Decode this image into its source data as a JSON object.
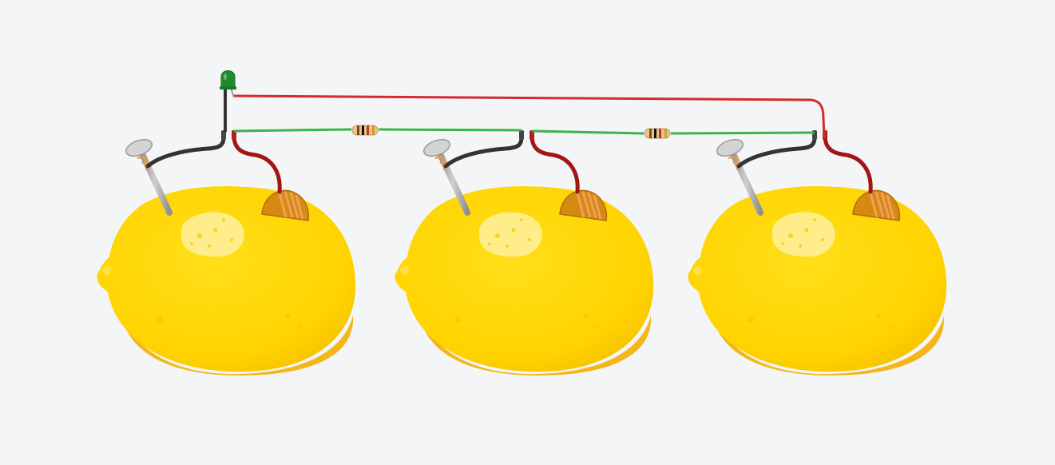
{
  "canvas": {
    "background": "#f3f5f7"
  },
  "colors": {
    "lemon": "#ffd300",
    "lemon_shadow": "#f2b50f",
    "lemon_highlight": "#fff3a8",
    "nail": "#a8a8a8",
    "nail_head": "#c9c9c9",
    "copper": "#e0961f",
    "copper_dark": "#b96f10",
    "wire_black": "#333333",
    "wire_dark_red": "#a31515",
    "wire_red": "#d42b2b",
    "wire_green": "#3db34a",
    "led_green": "#1e8c2a",
    "resistor_body": "#e6c68f"
  },
  "components": {
    "lemons": [
      {
        "id": "lemon-1",
        "electrodes": [
          "zinc-nail",
          "copper-coin"
        ]
      },
      {
        "id": "lemon-2",
        "electrodes": [
          "zinc-nail",
          "copper-coin"
        ]
      },
      {
        "id": "lemon-3",
        "electrodes": [
          "zinc-nail",
          "copper-coin"
        ]
      }
    ],
    "led": {
      "color": "green"
    },
    "resistors": [
      {
        "id": "resistor-1",
        "bands": [
          "#8b4513",
          "#111111",
          "#d42b2b",
          "#c9a227"
        ]
      },
      {
        "id": "resistor-2",
        "bands": [
          "#8b4513",
          "#111111",
          "#d42b2b",
          "#c9a227"
        ]
      }
    ]
  }
}
